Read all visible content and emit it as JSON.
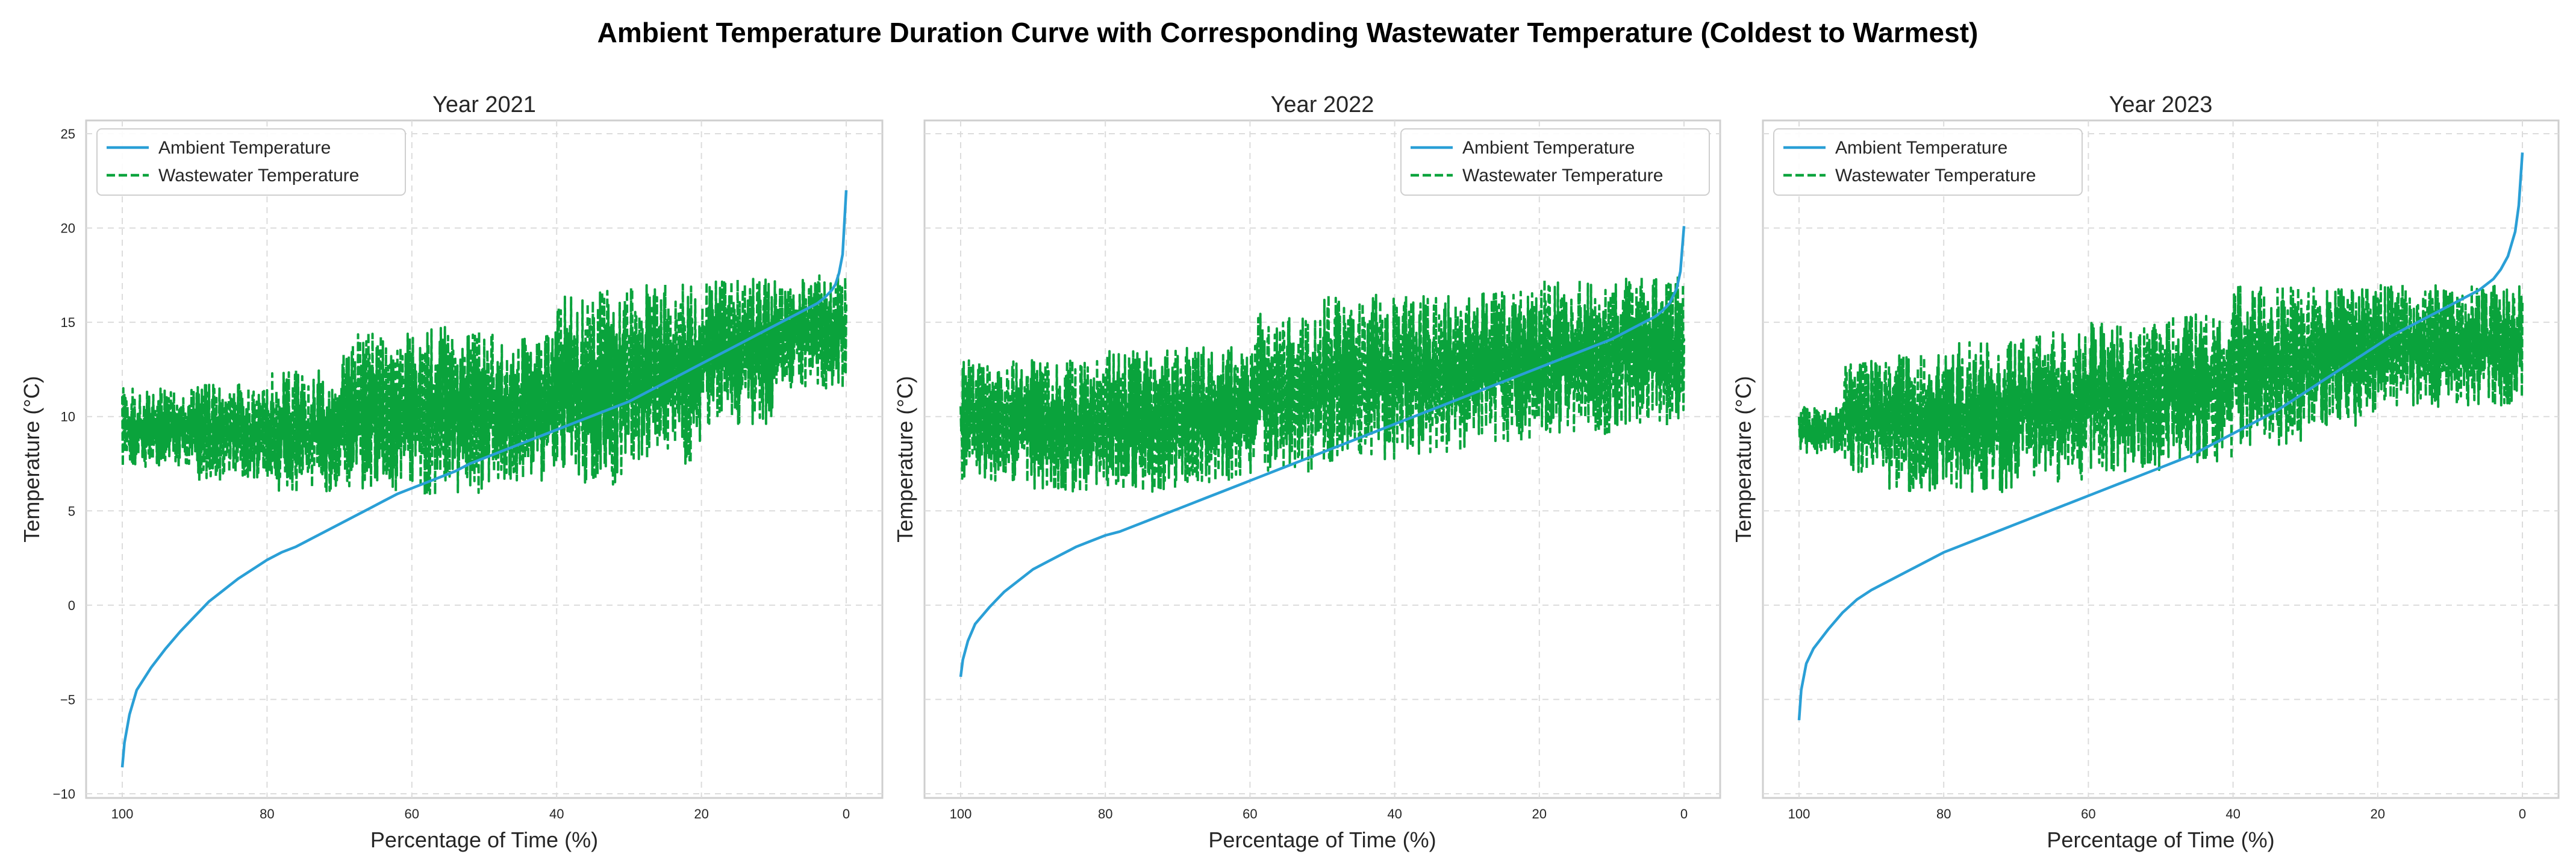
{
  "figure": {
    "title": "Ambient Temperature Duration Curve with Corresponding Wastewater Temperature (Coldest to Warmest)"
  },
  "colors": {
    "ambient": "#2a9fd6",
    "wastewater": "#0aa33c",
    "grid": "#dcdcdc",
    "frame": "#cfcfcf",
    "text": "#262626"
  },
  "chart_data": [
    {
      "type": "line",
      "title": "Year 2021",
      "xlabel": "Percentage of Time (%)",
      "ylabel": "Temperature (°C)",
      "xlim": [
        100,
        0
      ],
      "ylim": [
        -10,
        25
      ],
      "xticks": [
        100,
        80,
        60,
        40,
        20,
        0
      ],
      "yticks": [
        -10,
        -5,
        0,
        5,
        10,
        15,
        20,
        25
      ],
      "grid": true,
      "legend_position": "top-left",
      "series": [
        {
          "name": "Ambient Temperature",
          "style": "solid",
          "x": [
            100,
            99.7,
            99,
            98,
            96,
            94,
            92,
            90,
            88,
            86,
            84,
            82,
            80,
            78,
            76,
            74,
            72,
            70,
            68,
            66,
            64,
            62,
            60,
            58,
            56,
            54,
            52,
            50,
            48,
            46,
            44,
            42,
            40,
            38,
            36,
            34,
            32,
            30,
            28,
            26,
            24,
            22,
            20,
            18,
            16,
            14,
            12,
            10,
            8,
            6,
            4,
            3,
            2,
            1.5,
            1,
            0.5,
            0
          ],
          "y": [
            -8.6,
            -7.3,
            -5.8,
            -4.5,
            -3.3,
            -2.3,
            -1.4,
            -0.6,
            0.2,
            0.8,
            1.4,
            1.9,
            2.4,
            2.8,
            3.1,
            3.5,
            3.9,
            4.3,
            4.7,
            5.1,
            5.5,
            5.9,
            6.2,
            6.5,
            6.8,
            7.1,
            7.5,
            7.8,
            8.1,
            8.4,
            8.7,
            9.0,
            9.3,
            9.6,
            9.9,
            10.2,
            10.5,
            10.8,
            11.2,
            11.6,
            12.0,
            12.4,
            12.8,
            13.2,
            13.6,
            14.0,
            14.4,
            14.8,
            15.2,
            15.6,
            16.0,
            16.3,
            16.7,
            17.0,
            17.6,
            18.6,
            22.0
          ]
        },
        {
          "name": "Wastewater Temperature",
          "style": "dashed",
          "bands": [
            {
              "from": 100,
              "to": 90,
              "low": 7.3,
              "high": 11.5
            },
            {
              "from": 90,
              "to": 80,
              "low": 6.5,
              "high": 11.8
            },
            {
              "from": 80,
              "to": 70,
              "low": 6.0,
              "high": 12.5
            },
            {
              "from": 70,
              "to": 60,
              "low": 6.0,
              "high": 14.5
            },
            {
              "from": 60,
              "to": 50,
              "low": 5.8,
              "high": 14.8
            },
            {
              "from": 50,
              "to": 40,
              "low": 6.5,
              "high": 14.5
            },
            {
              "from": 40,
              "to": 30,
              "low": 6.3,
              "high": 16.8
            },
            {
              "from": 30,
              "to": 20,
              "low": 7.5,
              "high": 17.0
            },
            {
              "from": 20,
              "to": 10,
              "low": 9.5,
              "high": 17.3
            },
            {
              "from": 10,
              "to": 0,
              "low": 11.5,
              "high": 17.5
            }
          ]
        }
      ]
    },
    {
      "type": "line",
      "title": "Year 2022",
      "xlabel": "Percentage of Time (%)",
      "ylabel": "Temperature (°C)",
      "xlim": [
        100,
        0
      ],
      "ylim": [
        -10,
        25
      ],
      "xticks": [
        100,
        80,
        60,
        40,
        20,
        0
      ],
      "yticks": [
        -10,
        -5,
        0,
        5,
        10,
        15,
        20,
        25
      ],
      "grid": true,
      "legend_position": "top-right",
      "series": [
        {
          "name": "Ambient Temperature",
          "style": "solid",
          "x": [
            100,
            99.7,
            99,
            98,
            96,
            94,
            92,
            90,
            88,
            86,
            84,
            82,
            80,
            78,
            76,
            74,
            72,
            70,
            68,
            66,
            64,
            62,
            60,
            58,
            56,
            54,
            52,
            50,
            48,
            46,
            44,
            42,
            40,
            38,
            36,
            34,
            32,
            30,
            28,
            26,
            24,
            22,
            20,
            18,
            16,
            14,
            12,
            10,
            8,
            6,
            4,
            3,
            2,
            1,
            0.5,
            0
          ],
          "y": [
            -3.8,
            -2.9,
            -1.9,
            -1.0,
            -0.1,
            0.7,
            1.3,
            1.9,
            2.3,
            2.7,
            3.1,
            3.4,
            3.7,
            3.9,
            4.2,
            4.5,
            4.8,
            5.1,
            5.4,
            5.7,
            6.0,
            6.3,
            6.6,
            6.9,
            7.2,
            7.5,
            7.8,
            8.1,
            8.4,
            8.7,
            9.0,
            9.3,
            9.6,
            9.9,
            10.2,
            10.5,
            10.8,
            11.1,
            11.4,
            11.7,
            12.0,
            12.3,
            12.6,
            12.9,
            13.2,
            13.5,
            13.8,
            14.1,
            14.5,
            14.9,
            15.3,
            15.6,
            16.0,
            16.8,
            17.7,
            20.1
          ]
        },
        {
          "name": "Wastewater Temperature",
          "style": "dashed",
          "bands": [
            {
              "from": 100,
              "to": 90,
              "low": 6.5,
              "high": 13.0
            },
            {
              "from": 90,
              "to": 80,
              "low": 6.0,
              "high": 13.0
            },
            {
              "from": 80,
              "to": 70,
              "low": 6.0,
              "high": 13.5
            },
            {
              "from": 70,
              "to": 60,
              "low": 6.5,
              "high": 13.7
            },
            {
              "from": 60,
              "to": 50,
              "low": 7.0,
              "high": 15.5
            },
            {
              "from": 50,
              "to": 40,
              "low": 7.5,
              "high": 16.5
            },
            {
              "from": 40,
              "to": 30,
              "low": 8.0,
              "high": 16.5
            },
            {
              "from": 30,
              "to": 20,
              "low": 8.5,
              "high": 17.0
            },
            {
              "from": 20,
              "to": 10,
              "low": 9.0,
              "high": 17.3
            },
            {
              "from": 10,
              "to": 0,
              "low": 9.5,
              "high": 17.5
            }
          ]
        }
      ]
    },
    {
      "type": "line",
      "title": "Year 2023",
      "xlabel": "Percentage of Time (%)",
      "ylabel": "Temperature (°C)",
      "xlim": [
        100,
        0
      ],
      "ylim": [
        -10,
        25
      ],
      "xticks": [
        100,
        80,
        60,
        40,
        20,
        0
      ],
      "yticks": [
        -10,
        -5,
        0,
        5,
        10,
        15,
        20,
        25
      ],
      "grid": true,
      "legend_position": "top-left",
      "series": [
        {
          "name": "Ambient Temperature",
          "style": "solid",
          "x": [
            100,
            99.7,
            99,
            98,
            96,
            94,
            92,
            90,
            88,
            86,
            84,
            82,
            80,
            78,
            76,
            74,
            72,
            70,
            68,
            66,
            64,
            62,
            60,
            58,
            56,
            54,
            52,
            50,
            48,
            46,
            44,
            42,
            40,
            38,
            36,
            34,
            32,
            30,
            28,
            26,
            24,
            22,
            20,
            18,
            16,
            14,
            12,
            10,
            8,
            6,
            4,
            3,
            2,
            1,
            0.5,
            0
          ],
          "y": [
            -6.1,
            -4.5,
            -3.1,
            -2.3,
            -1.3,
            -0.4,
            0.3,
            0.8,
            1.2,
            1.6,
            2.0,
            2.4,
            2.8,
            3.1,
            3.4,
            3.7,
            4.0,
            4.3,
            4.6,
            4.9,
            5.2,
            5.5,
            5.8,
            6.1,
            6.4,
            6.7,
            7.0,
            7.3,
            7.6,
            7.9,
            8.3,
            8.7,
            9.1,
            9.5,
            9.9,
            10.3,
            10.8,
            11.3,
            11.8,
            12.3,
            12.8,
            13.3,
            13.8,
            14.3,
            14.7,
            15.1,
            15.5,
            15.9,
            16.3,
            16.7,
            17.3,
            17.8,
            18.5,
            19.8,
            21.2,
            24.0
          ]
        },
        {
          "name": "Wastewater Temperature",
          "style": "dashed",
          "bands": [
            {
              "from": 100,
              "to": 94,
              "low": 8.0,
              "high": 10.5
            },
            {
              "from": 94,
              "to": 88,
              "low": 7.0,
              "high": 13.0
            },
            {
              "from": 88,
              "to": 80,
              "low": 6.0,
              "high": 13.5
            },
            {
              "from": 80,
              "to": 70,
              "low": 6.0,
              "high": 14.0
            },
            {
              "from": 70,
              "to": 60,
              "low": 6.5,
              "high": 14.5
            },
            {
              "from": 60,
              "to": 50,
              "low": 7.0,
              "high": 15.0
            },
            {
              "from": 50,
              "to": 40,
              "low": 7.5,
              "high": 15.5
            },
            {
              "from": 40,
              "to": 30,
              "low": 8.5,
              "high": 17.0
            },
            {
              "from": 30,
              "to": 20,
              "low": 9.5,
              "high": 17.0
            },
            {
              "from": 20,
              "to": 10,
              "low": 10.5,
              "high": 17.0
            },
            {
              "from": 10,
              "to": 0,
              "low": 10.5,
              "high": 17.0
            }
          ]
        }
      ]
    }
  ]
}
